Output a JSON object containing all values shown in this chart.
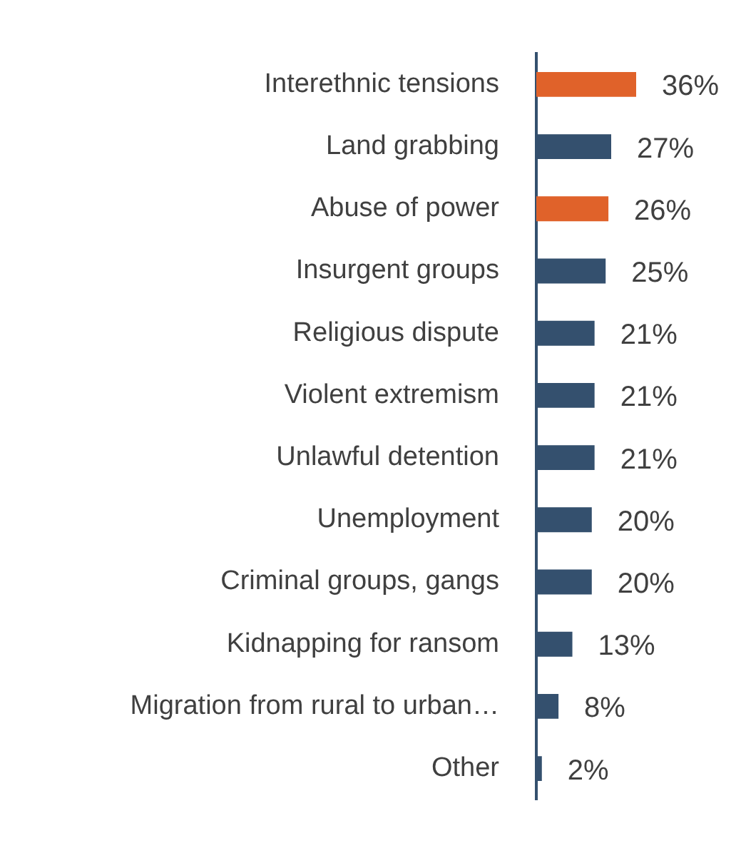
{
  "chart_data": {
    "type": "bar",
    "orientation": "horizontal",
    "categories": [
      "Interethnic tensions",
      "Land grabbing",
      "Abuse of power",
      "Insurgent groups",
      "Religious dispute",
      "Violent extremism",
      "Unlawful detention",
      "Unemployment",
      "Criminal groups, gangs",
      "Kidnapping for ransom",
      "Migration from rural to urban…",
      "Other"
    ],
    "values": [
      36,
      27,
      26,
      25,
      21,
      21,
      21,
      20,
      20,
      13,
      8,
      2
    ],
    "colors": [
      "#e0622a",
      "#34506e",
      "#e0622a",
      "#34506e",
      "#34506e",
      "#34506e",
      "#34506e",
      "#34506e",
      "#34506e",
      "#34506e",
      "#34506e",
      "#34506e"
    ],
    "value_labels": [
      "36%",
      "27%",
      "26%",
      "25%",
      "21%",
      "21%",
      "21%",
      "20%",
      "20%",
      "13%",
      "8%",
      "2%"
    ],
    "legend": false
  }
}
